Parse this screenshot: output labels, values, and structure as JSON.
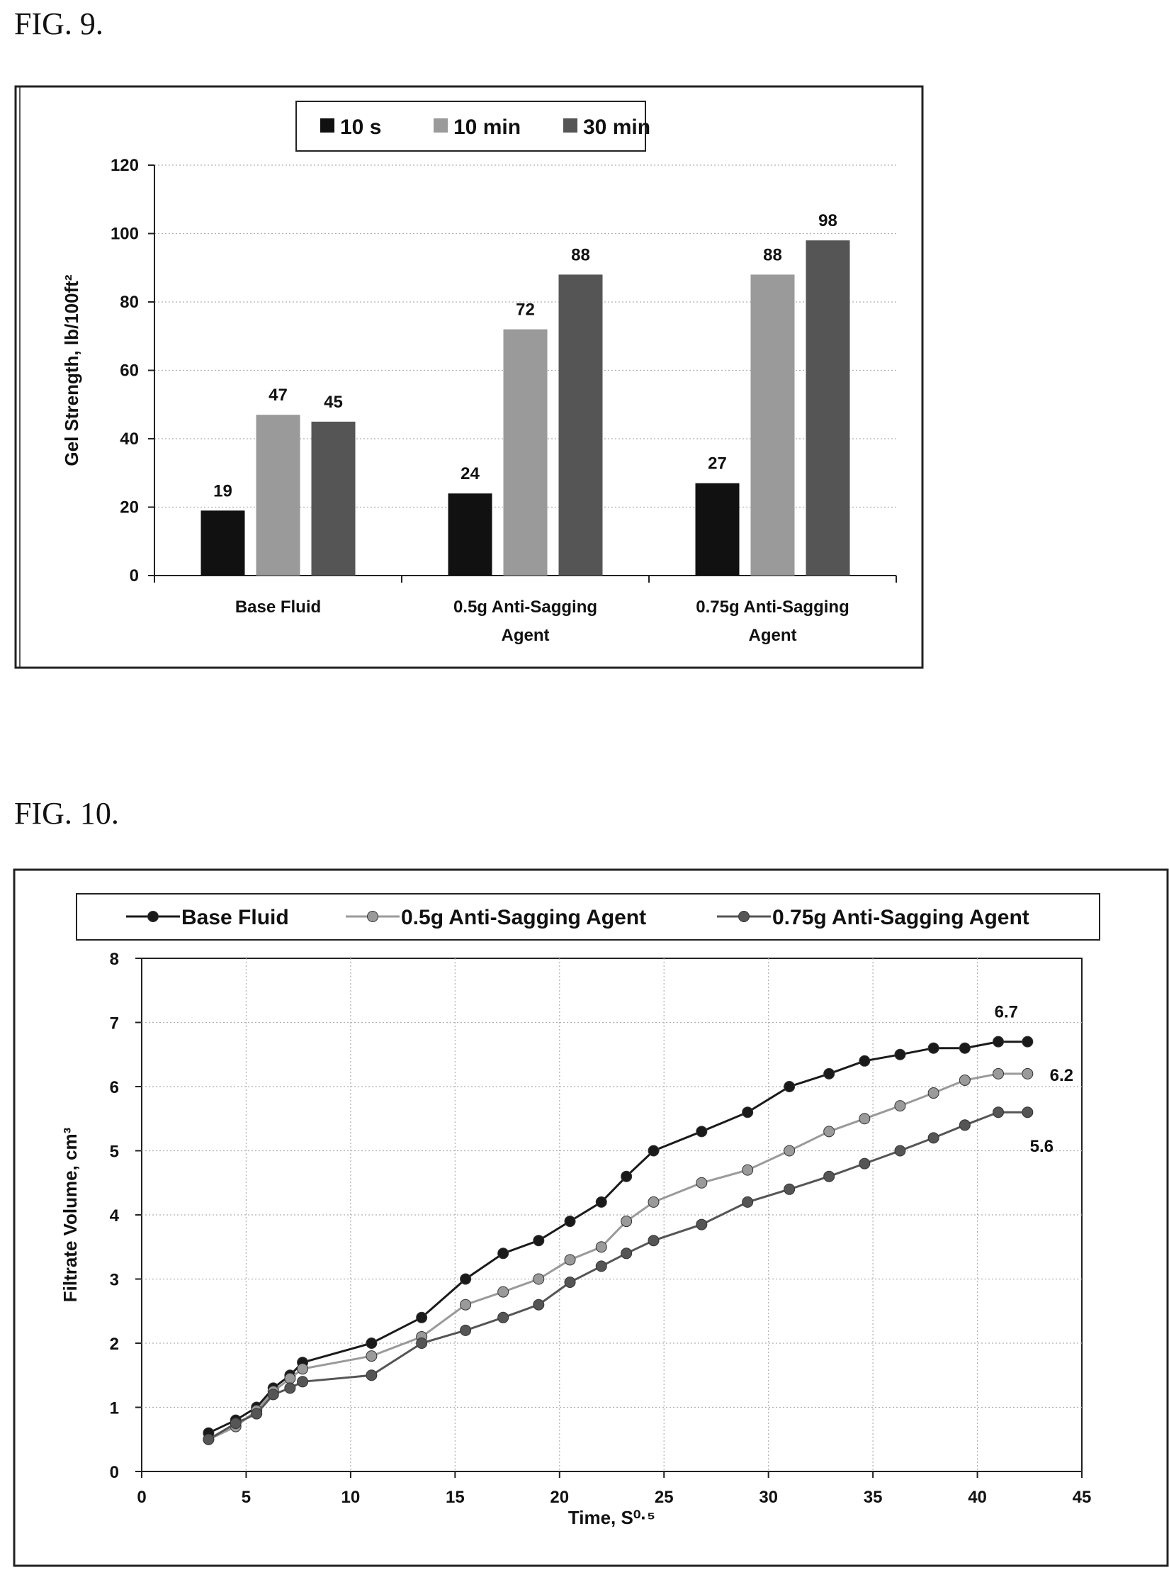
{
  "figures": [
    {
      "label": "FIG. 9."
    },
    {
      "label": "FIG. 10."
    }
  ],
  "chart_data": [
    {
      "type": "bar",
      "categories": [
        "Base Fluid",
        "0.5g Anti-Sagging\nAgent",
        "0.75g Anti-Sagging\nAgent"
      ],
      "series": [
        {
          "name": "10 s",
          "values": [
            19,
            24,
            27
          ],
          "color": "#111111"
        },
        {
          "name": "10 min",
          "values": [
            47,
            72,
            88
          ],
          "color": "#9a9a9a"
        },
        {
          "name": "30 min",
          "values": [
            45,
            88,
            98
          ],
          "color": "#555555"
        }
      ],
      "data_labels": [
        [
          "19",
          "24",
          "27"
        ],
        [
          "47",
          "72",
          "88"
        ],
        [
          "45",
          "88",
          "98"
        ]
      ],
      "ylabel": "Gel Strength, lb/100ft²",
      "ylim": [
        0,
        120
      ],
      "yticks": [
        0,
        20,
        40,
        60,
        80,
        100,
        120
      ],
      "legend": "top-center",
      "grid": true
    },
    {
      "type": "line",
      "xlabel": "Time, S⁰·⁵",
      "ylabel": "Filtrate Volume, cm³",
      "xlim": [
        0,
        45
      ],
      "ylim": [
        0,
        8
      ],
      "xticks": [
        0,
        5,
        10,
        15,
        20,
        25,
        30,
        35,
        40,
        45
      ],
      "yticks": [
        0,
        1,
        2,
        3,
        4,
        5,
        6,
        7,
        8
      ],
      "legend": "top",
      "grid": true,
      "series": [
        {
          "name": "Base Fluid",
          "color": "#1a1a1a",
          "x": [
            3.2,
            4.5,
            5.5,
            6.3,
            7.1,
            7.7,
            11.0,
            13.4,
            15.5,
            17.3,
            19.0,
            20.5,
            22.0,
            23.2,
            24.5,
            26.8,
            29.0,
            31.0,
            32.9,
            34.6,
            36.3,
            37.9,
            39.4,
            41.0,
            42.4
          ],
          "y": [
            0.6,
            0.8,
            1.0,
            1.3,
            1.5,
            1.7,
            2.0,
            2.4,
            3.0,
            3.4,
            3.6,
            3.9,
            4.2,
            4.6,
            5.0,
            5.3,
            5.6,
            6.0,
            6.2,
            6.4,
            6.5,
            6.6,
            6.6,
            6.7,
            6.7
          ],
          "end_label": "6.7"
        },
        {
          "name": "0.5g Anti-Sagging Agent",
          "color": "#9a9a9a",
          "x": [
            3.2,
            4.5,
            5.5,
            6.3,
            7.1,
            7.7,
            11.0,
            13.4,
            15.5,
            17.3,
            19.0,
            20.5,
            22.0,
            23.2,
            24.5,
            26.8,
            29.0,
            31.0,
            32.9,
            34.6,
            36.3,
            37.9,
            39.4,
            41.0,
            42.4
          ],
          "y": [
            0.5,
            0.7,
            0.95,
            1.25,
            1.45,
            1.6,
            1.8,
            2.1,
            2.6,
            2.8,
            3.0,
            3.3,
            3.5,
            3.9,
            4.2,
            4.5,
            4.7,
            5.0,
            5.3,
            5.5,
            5.7,
            5.9,
            6.1,
            6.2,
            6.2
          ],
          "end_label": "6.2"
        },
        {
          "name": "0.75g Anti-Sagging Agent",
          "color": "#555555",
          "x": [
            3.2,
            4.5,
            5.5,
            6.3,
            7.1,
            7.7,
            11.0,
            13.4,
            15.5,
            17.3,
            19.0,
            20.5,
            22.0,
            23.2,
            24.5,
            26.8,
            29.0,
            31.0,
            32.9,
            34.6,
            36.3,
            37.9,
            39.4,
            41.0,
            42.4
          ],
          "y": [
            0.5,
            0.75,
            0.9,
            1.2,
            1.3,
            1.4,
            1.5,
            2.0,
            2.2,
            2.4,
            2.6,
            2.95,
            3.2,
            3.4,
            3.6,
            3.85,
            4.2,
            4.4,
            4.6,
            4.8,
            5.0,
            5.2,
            5.4,
            5.6,
            5.6
          ],
          "end_label": "5.6"
        }
      ]
    }
  ]
}
